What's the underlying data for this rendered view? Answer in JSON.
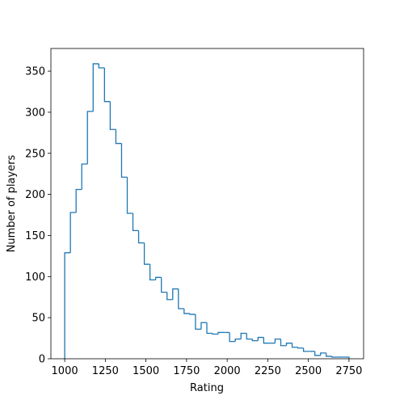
{
  "chart_data": {
    "type": "histogram",
    "x_label": "Rating",
    "y_label": "Number of players",
    "color": "#1f77b4",
    "histtype": "step",
    "bins": [
      1000,
      1035,
      1070,
      1105,
      1140,
      1175,
      1210,
      1245,
      1280,
      1315,
      1350,
      1385,
      1420,
      1455,
      1490,
      1525,
      1560,
      1595,
      1630,
      1665,
      1700,
      1735,
      1770,
      1805,
      1840,
      1875,
      1910,
      1945,
      1980,
      2015,
      2050,
      2085,
      2120,
      2155,
      2190,
      2225,
      2260,
      2295,
      2330,
      2365,
      2400,
      2435,
      2470,
      2505,
      2540,
      2575,
      2610,
      2645,
      2680,
      2715,
      2750
    ],
    "counts": [
      129,
      178,
      206,
      237,
      301,
      359,
      354,
      313,
      279,
      262,
      221,
      177,
      156,
      141,
      115,
      96,
      99,
      81,
      72,
      85,
      61,
      55,
      54,
      36,
      44,
      31,
      30,
      32,
      32,
      21,
      24,
      31,
      24,
      22,
      26,
      19,
      19,
      24,
      16,
      19,
      14,
      13,
      9,
      9,
      4,
      7,
      3,
      2,
      2,
      2
    ],
    "xlim": [
      915,
      2840
    ],
    "ylim": [
      0,
      377.6
    ],
    "xticks": [
      1000,
      1250,
      1500,
      1750,
      2000,
      2250,
      2500,
      2750
    ],
    "yticks": [
      0,
      50,
      100,
      150,
      200,
      250,
      300,
      350
    ]
  }
}
